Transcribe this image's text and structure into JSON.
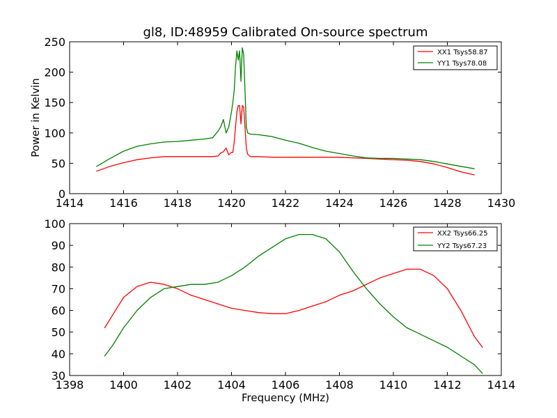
{
  "chart_data": [
    {
      "type": "line",
      "title": "gl8, ID:48959 Calibrated On-source spectrum",
      "xlabel": "",
      "ylabel": "Power in Kelvin",
      "xlim": [
        1414,
        1430
      ],
      "ylim": [
        0,
        250
      ],
      "xticks": [
        "1414",
        "1416",
        "1418",
        "1420",
        "1422",
        "1424",
        "1426",
        "1428",
        "1430"
      ],
      "yticks": [
        "0",
        "50",
        "100",
        "150",
        "200",
        "250"
      ],
      "legend_position": "top-right",
      "series": [
        {
          "name": "XX1 Tsys58.87",
          "color": "#ff0000",
          "x": [
            1415.0,
            1415.5,
            1416.0,
            1416.5,
            1417.0,
            1417.5,
            1418.0,
            1418.5,
            1419.0,
            1419.3,
            1419.5,
            1419.6,
            1419.7,
            1419.8,
            1419.9,
            1420.0,
            1420.05,
            1420.1,
            1420.15,
            1420.2,
            1420.25,
            1420.3,
            1420.35,
            1420.4,
            1420.45,
            1420.5,
            1420.55,
            1420.6,
            1420.7,
            1421.0,
            1421.5,
            1422.0,
            1422.5,
            1423.0,
            1423.5,
            1424.0,
            1424.5,
            1425.0,
            1425.5,
            1426.0,
            1426.5,
            1427.0,
            1427.5,
            1428.0,
            1428.5,
            1429.0
          ],
          "y": [
            37,
            45,
            51,
            56,
            59,
            61,
            61,
            61,
            61,
            61,
            62,
            67,
            69,
            75,
            64,
            68,
            68,
            85,
            110,
            135,
            145,
            145,
            115,
            145,
            143,
            110,
            75,
            65,
            61,
            61,
            60,
            60,
            60,
            60,
            60,
            60,
            59,
            58,
            57,
            56,
            55,
            53,
            49,
            43,
            36,
            31
          ]
        },
        {
          "name": "YY1 Tsys78.08",
          "color": "#008000",
          "x": [
            1415.0,
            1415.5,
            1416.0,
            1416.5,
            1417.0,
            1417.5,
            1418.0,
            1418.5,
            1419.0,
            1419.3,
            1419.5,
            1419.6,
            1419.7,
            1419.8,
            1419.9,
            1420.0,
            1420.05,
            1420.1,
            1420.15,
            1420.2,
            1420.25,
            1420.3,
            1420.35,
            1420.4,
            1420.45,
            1420.5,
            1420.55,
            1420.6,
            1420.7,
            1421.0,
            1421.5,
            1422.0,
            1422.5,
            1423.0,
            1423.5,
            1424.0,
            1424.5,
            1425.0,
            1425.5,
            1426.0,
            1426.5,
            1427.0,
            1427.5,
            1428.0,
            1428.5,
            1429.0
          ],
          "y": [
            45,
            58,
            70,
            78,
            82,
            85,
            86,
            88,
            90,
            92,
            103,
            110,
            122,
            100,
            110,
            135,
            150,
            170,
            210,
            235,
            220,
            235,
            185,
            240,
            230,
            170,
            110,
            100,
            98,
            97,
            94,
            88,
            83,
            76,
            70,
            66,
            62,
            59,
            58,
            58,
            57,
            56,
            53,
            49,
            45,
            41
          ]
        }
      ]
    },
    {
      "type": "line",
      "title": "",
      "xlabel": "Frequency (MHz)",
      "ylabel": "",
      "xlim": [
        1398,
        1414
      ],
      "ylim": [
        30,
        100
      ],
      "xticks": [
        "1398",
        "1400",
        "1402",
        "1404",
        "1406",
        "1408",
        "1410",
        "1412",
        "1414"
      ],
      "yticks": [
        "30",
        "40",
        "50",
        "60",
        "70",
        "80",
        "90",
        "100"
      ],
      "legend_position": "top-right",
      "series": [
        {
          "name": "XX2 Tsys66.25",
          "color": "#ff0000",
          "x": [
            1399.3,
            1399.6,
            1400.0,
            1400.5,
            1401.0,
            1401.5,
            1402.0,
            1402.5,
            1403.0,
            1403.5,
            1404.0,
            1404.5,
            1405.0,
            1405.5,
            1406.0,
            1406.5,
            1407.0,
            1407.5,
            1408.0,
            1408.5,
            1409.0,
            1409.5,
            1410.0,
            1410.5,
            1411.0,
            1411.5,
            1412.0,
            1412.5,
            1413.0,
            1413.3
          ],
          "y": [
            52,
            58,
            66,
            71,
            73,
            72,
            70,
            67,
            65,
            63,
            61,
            60,
            59,
            58.5,
            58.5,
            60,
            62,
            64,
            67,
            69,
            72,
            75,
            77,
            79,
            79,
            76,
            70,
            60,
            48,
            43
          ]
        },
        {
          "name": "YY2 Tsys67.23",
          "color": "#008000",
          "x": [
            1399.3,
            1399.6,
            1400.0,
            1400.5,
            1401.0,
            1401.5,
            1402.0,
            1402.5,
            1403.0,
            1403.5,
            1404.0,
            1404.5,
            1405.0,
            1405.5,
            1406.0,
            1406.5,
            1407.0,
            1407.5,
            1408.0,
            1408.5,
            1409.0,
            1409.5,
            1410.0,
            1410.5,
            1411.0,
            1411.5,
            1412.0,
            1412.5,
            1413.0,
            1413.3
          ],
          "y": [
            39,
            44,
            52,
            60,
            66,
            70,
            71,
            72,
            72,
            73,
            76,
            80,
            85,
            89,
            93,
            95,
            95,
            93,
            87,
            78,
            70,
            63,
            57,
            52,
            49,
            46,
            43,
            39,
            35,
            31
          ]
        }
      ]
    }
  ]
}
